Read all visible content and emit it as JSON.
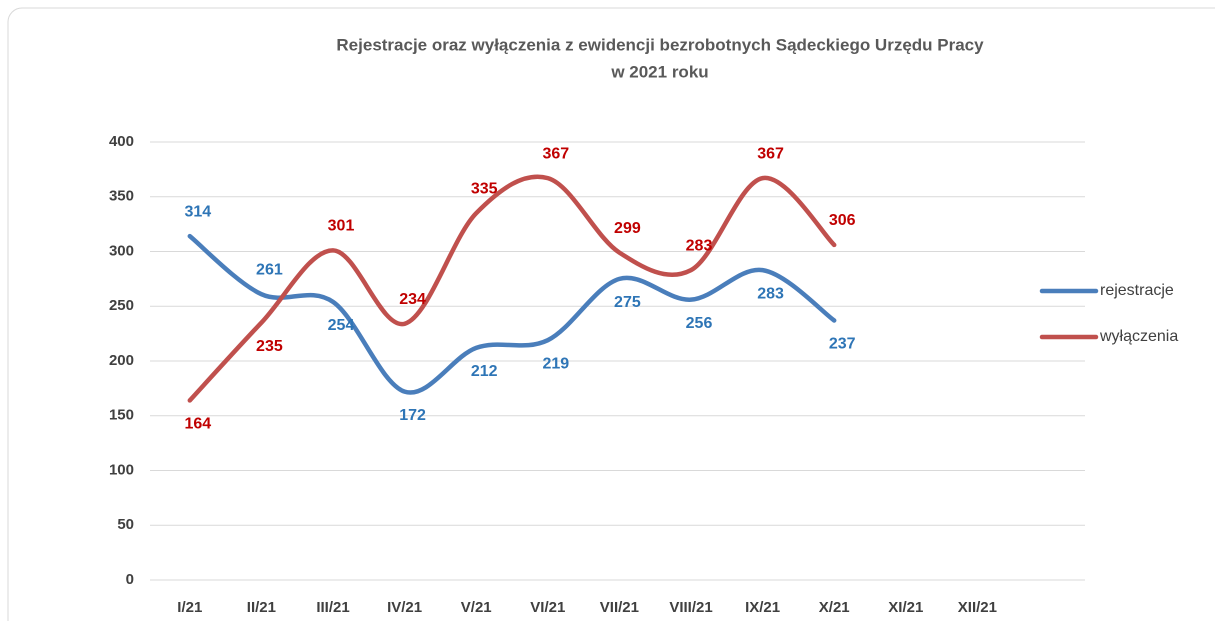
{
  "chart_data": {
    "type": "line",
    "title": [
      "Rejestracje oraz wyłączenia z ewidencji bezrobotnych Sądeckiego Urzędu Pracy",
      "w 2021 roku"
    ],
    "categories": [
      "I/21",
      "II/21",
      "III/21",
      "IV/21",
      "V/21",
      "VI/21",
      "VII/21",
      "VIII/21",
      "IX/21",
      "X/21",
      "XI/21",
      "XII/21"
    ],
    "series": [
      {
        "name": "rejestracje",
        "color": "#4a7ebb",
        "label_color": "#2e75b6",
        "values": [
          314,
          261,
          254,
          172,
          212,
          219,
          275,
          256,
          283,
          237,
          null,
          null
        ]
      },
      {
        "name": "wyłączenia",
        "color": "#c0504d",
        "label_color": "#c00000",
        "values": [
          164,
          235,
          301,
          234,
          335,
          367,
          299,
          283,
          367,
          306,
          null,
          null
        ]
      }
    ],
    "ylim": [
      0,
      400
    ],
    "yticks": [
      0,
      50,
      100,
      150,
      200,
      250,
      300,
      350,
      400
    ],
    "grid": true,
    "smooth": true,
    "legend": "right"
  }
}
